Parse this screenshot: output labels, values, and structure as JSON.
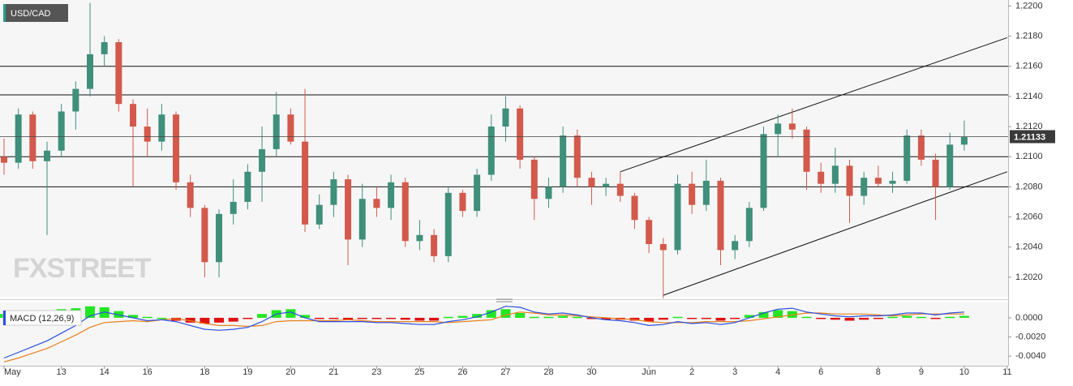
{
  "chart_data": [
    {
      "type": "candlestick",
      "title": "USD/CAD",
      "watermark": "FXSTREET",
      "last_price": 1.21133,
      "categories": [
        "May",
        null,
        null,
        null,
        "13",
        null,
        null,
        "14",
        null,
        null,
        "16",
        null,
        null,
        null,
        "18",
        null,
        null,
        "19",
        null,
        null,
        "20",
        null,
        null,
        "21",
        null,
        null,
        "23",
        null,
        null,
        "25",
        null,
        null,
        "26",
        null,
        null,
        "27",
        null,
        null,
        "28",
        null,
        null,
        "30",
        null,
        null,
        null,
        "Jun",
        null,
        null,
        "2",
        null,
        null,
        "3",
        null,
        null,
        "4",
        null,
        null,
        "6",
        null,
        null,
        null,
        "8",
        null,
        null,
        "9",
        null,
        null,
        "10",
        null,
        null,
        "11"
      ],
      "open": [
        1.21,
        1.2096,
        1.2128,
        1.2097,
        1.2104,
        1.213,
        1.2145,
        1.2168,
        1.2176,
        1.2135,
        1.212,
        1.211,
        1.2128,
        1.2083,
        1.2066,
        1.203,
        1.2062,
        1.207,
        1.209,
        1.2105,
        1.2128,
        1.211,
        1.2055,
        1.2068,
        1.2085,
        1.2045,
        1.2072,
        1.2066,
        1.2083,
        1.2044,
        1.2048,
        1.2034,
        1.2076,
        1.2064,
        1.2088,
        1.212,
        1.2132,
        1.2098,
        1.2072,
        1.208,
        1.2114,
        1.2086,
        1.208,
        1.2082,
        1.2074,
        1.2058,
        1.2042,
        1.2038,
        1.2082,
        1.2068,
        1.2084,
        1.2038,
        1.2044,
        1.2066,
        1.2115,
        1.2122,
        1.2118,
        1.209,
        1.2082,
        1.2094,
        1.2074,
        1.2086,
        1.2082,
        1.2084,
        1.2114,
        1.2098,
        1.208,
        1.2108,
        null,
        null,
        null
      ],
      "high": [
        1.2112,
        1.2132,
        1.213,
        1.211,
        1.2135,
        1.215,
        1.2202,
        1.218,
        1.2178,
        1.2138,
        1.2132,
        1.2135,
        1.213,
        1.2088,
        1.2068,
        1.2065,
        1.2085,
        1.2095,
        1.212,
        1.2143,
        1.2132,
        1.2145,
        1.2075,
        1.209,
        1.2088,
        1.2082,
        1.208,
        1.2088,
        1.2086,
        1.2058,
        1.2052,
        1.208,
        1.2078,
        1.2092,
        1.2128,
        1.214,
        1.2134,
        1.21,
        1.2086,
        1.212,
        1.2118,
        1.209,
        1.2086,
        1.209,
        1.2076,
        1.206,
        1.2046,
        1.2088,
        1.209,
        1.2098,
        1.2086,
        1.2048,
        1.207,
        1.212,
        1.2128,
        1.2132,
        1.212,
        1.2096,
        1.2106,
        1.2098,
        1.209,
        1.2094,
        1.209,
        1.2118,
        1.2118,
        1.2102,
        1.2116,
        1.2124,
        null,
        null,
        null
      ],
      "low": [
        1.2088,
        1.2092,
        1.2092,
        1.2048,
        1.21,
        1.2118,
        1.214,
        1.216,
        1.213,
        1.208,
        1.21,
        1.2104,
        1.2078,
        1.206,
        1.202,
        1.202,
        1.2055,
        1.2065,
        1.207,
        1.21,
        1.2108,
        1.205,
        1.2052,
        1.206,
        1.2028,
        1.204,
        1.206,
        1.2058,
        1.204,
        1.2038,
        1.203,
        1.203,
        1.206,
        1.206,
        1.2084,
        1.211,
        1.2092,
        1.2058,
        1.2066,
        1.2076,
        1.208,
        1.2068,
        1.2074,
        1.207,
        1.2052,
        1.2036,
        1.2006,
        1.2035,
        1.2062,
        1.2064,
        1.2028,
        1.2032,
        1.204,
        1.2064,
        1.21,
        1.2112,
        1.2078,
        1.2076,
        1.2076,
        1.2056,
        1.2068,
        1.208,
        1.2076,
        1.2082,
        1.2094,
        1.2058,
        1.2078,
        1.2104,
        null,
        null,
        null
      ],
      "close": [
        1.2096,
        1.2128,
        1.2097,
        1.2104,
        1.213,
        1.2145,
        1.2168,
        1.2176,
        1.2135,
        1.212,
        1.211,
        1.2128,
        1.2083,
        1.2066,
        1.203,
        1.2062,
        1.207,
        1.209,
        1.2105,
        1.2128,
        1.211,
        1.2055,
        1.2068,
        1.2085,
        1.2045,
        1.2072,
        1.2066,
        1.2083,
        1.2044,
        1.2048,
        1.2034,
        1.2076,
        1.2064,
        1.2088,
        1.212,
        1.2132,
        1.2098,
        1.2072,
        1.208,
        1.2114,
        1.2086,
        1.208,
        1.2082,
        1.2074,
        1.2058,
        1.2042,
        1.2038,
        1.2082,
        1.2068,
        1.2084,
        1.2038,
        1.2044,
        1.2066,
        1.2115,
        1.2122,
        1.2118,
        1.209,
        1.2082,
        1.2094,
        1.2074,
        1.2086,
        1.2082,
        1.2084,
        1.2114,
        1.2098,
        1.208,
        1.2108,
        1.2113,
        null,
        null,
        null
      ],
      "up_color": "#3f8f7b",
      "down_color": "#d2594b",
      "hlines": [
        1.216,
        1.2141,
        1.21,
        1.208
      ],
      "trendlines": [
        {
          "x": [
            43,
            70
          ],
          "y": [
            1.209,
            1.2179
          ]
        },
        {
          "x": [
            46,
            70
          ],
          "y": [
            1.2008,
            1.209
          ]
        }
      ],
      "ylim": [
        1.2007,
        1.2204
      ],
      "yticks": [
        {
          "value": 1.202,
          "label": "1.2020"
        },
        {
          "value": 1.204,
          "label": "1.2040"
        },
        {
          "value": 1.206,
          "label": "1.2060"
        },
        {
          "value": 1.208,
          "label": "1.2080"
        },
        {
          "value": 1.21,
          "label": "1.2100"
        },
        {
          "value": 1.212,
          "label": "1.2120"
        },
        {
          "value": 1.214,
          "label": "1.2140"
        },
        {
          "value": 1.216,
          "label": "1.2160"
        },
        {
          "value": 1.218,
          "label": "1.2180"
        },
        {
          "value": 1.22,
          "label": "1.2200"
        }
      ]
    },
    {
      "type": "macd",
      "title": "MACD (12,26,9)",
      "series": [
        {
          "color": "#2a4fe0",
          "values": [
            -0.0042,
            -0.0036,
            -0.003,
            -0.0024,
            -0.0016,
            -0.0008,
            0.0002,
            0.0006,
            0.0003,
            0,
            -0.0003,
            -0.0002,
            -0.0004,
            -0.0008,
            -0.0012,
            -0.0013,
            -0.0012,
            -0.001,
            -0.0004,
            0.0004,
            0.0006,
            0,
            -0.0004,
            -0.0004,
            -0.0004,
            -0.0004,
            -0.0005,
            -0.0005,
            -0.0006,
            -0.0007,
            -0.0007,
            -0.0004,
            -0.0002,
            0.0001,
            0.0006,
            0.0012,
            0.0011,
            0.0006,
            0.0004,
            0.0005,
            0.0003,
            0,
            -0.0002,
            -0.0003,
            -0.0005,
            -0.0008,
            -0.0007,
            -0.0004,
            -0.0006,
            -0.0005,
            -0.0007,
            -0.0005,
            0,
            0.0005,
            0.0009,
            0.001,
            0.0006,
            0.0004,
            0.0002,
            0.0001,
            0.0002,
            0.0002,
            0.0003,
            0.0005,
            0.0005,
            0.0003,
            0.0005,
            0.0006,
            null,
            null,
            null
          ]
        },
        {
          "color": "#e8801e",
          "values": [
            -0.0046,
            -0.0042,
            -0.0037,
            -0.0032,
            -0.0025,
            -0.0018,
            -0.001,
            -0.0005,
            -0.0004,
            -0.0003,
            -0.0004,
            -0.0002,
            -0.0001,
            -0.0003,
            -0.0006,
            -0.0008,
            -0.0008,
            -0.0009,
            -0.0008,
            -0.0004,
            -0.0003,
            -0.0003,
            -0.0003,
            -0.0003,
            -0.0002,
            -0.0003,
            -0.0004,
            -0.0004,
            -0.0004,
            -0.0004,
            -0.0004,
            -0.0005,
            -0.0004,
            -0.0003,
            -0.0002,
            0.0003,
            0.0006,
            0.0005,
            0.0003,
            0.0003,
            0.0002,
            0.0001,
            0,
            -0.0001,
            -0.0002,
            -0.0004,
            -0.0005,
            -0.0005,
            -0.0005,
            -0.0004,
            -0.0004,
            -0.0004,
            -0.0003,
            -0.0001,
            0.0001,
            0.0003,
            0.0005,
            0.0005,
            0.0004,
            0.0004,
            0.0004,
            0.0003,
            0.0002,
            0.0003,
            0.0004,
            0.0004,
            0.0004,
            0.0004,
            null,
            null,
            null
          ]
        }
      ],
      "histogram": {
        "up_color": "#22e622",
        "down_color": "#e01010",
        "values": [
          0.0004,
          0.0006,
          0.0007,
          0.0008,
          0.0009,
          0.001,
          0.0012,
          0.0011,
          0.0007,
          0.0003,
          0.0001,
          0,
          -0.0003,
          -0.0005,
          -0.0006,
          -0.0005,
          -0.0004,
          -0.0001,
          0.0004,
          0.0008,
          0.0009,
          0.0003,
          -0.0001,
          -0.0001,
          -0.0002,
          -0.0001,
          -0.0001,
          -0.0001,
          -0.0002,
          -0.0003,
          -0.0003,
          0.0001,
          0.0002,
          0.0004,
          0.0008,
          0.0009,
          0.0005,
          0.0001,
          0.0001,
          0.0002,
          0.0001,
          -0.0001,
          -0.0002,
          -0.0002,
          -0.0003,
          -0.0004,
          -0.0002,
          0.0001,
          -0.0001,
          -0.0001,
          -0.0003,
          -0.0001,
          0.0003,
          0.0006,
          0.0008,
          0.0007,
          0.0001,
          -0.0001,
          -0.0002,
          -0.0003,
          -0.0002,
          -0.0001,
          0.0001,
          0.0002,
          0.0001,
          -0.0001,
          0.0001,
          0.0002,
          null,
          null,
          null
        ]
      },
      "ylim": [
        -0.005,
        0.0016
      ],
      "yticks": [
        {
          "value": -0.004,
          "label": "-0.0040"
        },
        {
          "value": -0.002,
          "label": "-0.0020"
        },
        {
          "value": 0,
          "label": "0.0000"
        }
      ]
    }
  ]
}
